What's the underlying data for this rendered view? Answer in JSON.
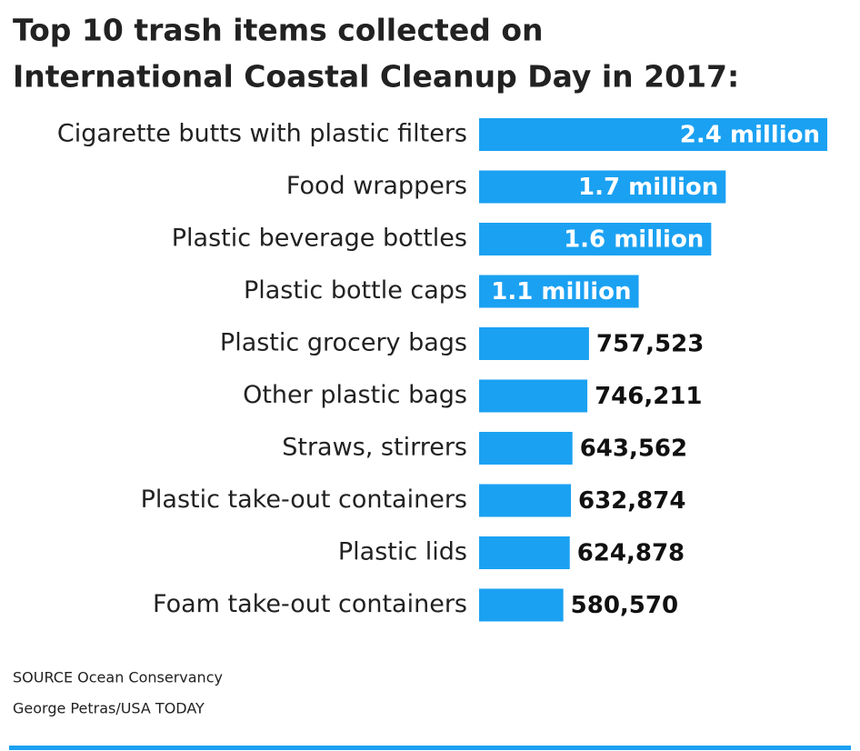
{
  "chart_data": {
    "type": "bar",
    "orientation": "horizontal",
    "title": [
      "Top 10 trash items collected on",
      "International Coastal Cleanup Day in 2017:"
    ],
    "categories": [
      "Cigarette butts with plastic filters",
      "Food wrappers",
      "Plastic beverage bottles",
      "Plastic bottle caps",
      "Plastic grocery bags",
      "Other plastic bags",
      "Straws, stirrers",
      "Plastic take-out containers",
      "Plastic lids",
      "Foam take-out containers"
    ],
    "values": [
      2400000,
      1700000,
      1600000,
      1100000,
      757523,
      746211,
      643562,
      632874,
      624878,
      580570
    ],
    "value_labels": [
      "2.4 million",
      "1.7 million",
      "1.6 million",
      "1.1 million",
      "757,523",
      "746,211",
      "643,562",
      "632,874",
      "624,878",
      "580,570"
    ],
    "color": "#1ba1f2",
    "source": "SOURCE Ocean Conservancy",
    "credit": "George Petras/USA TODAY"
  }
}
